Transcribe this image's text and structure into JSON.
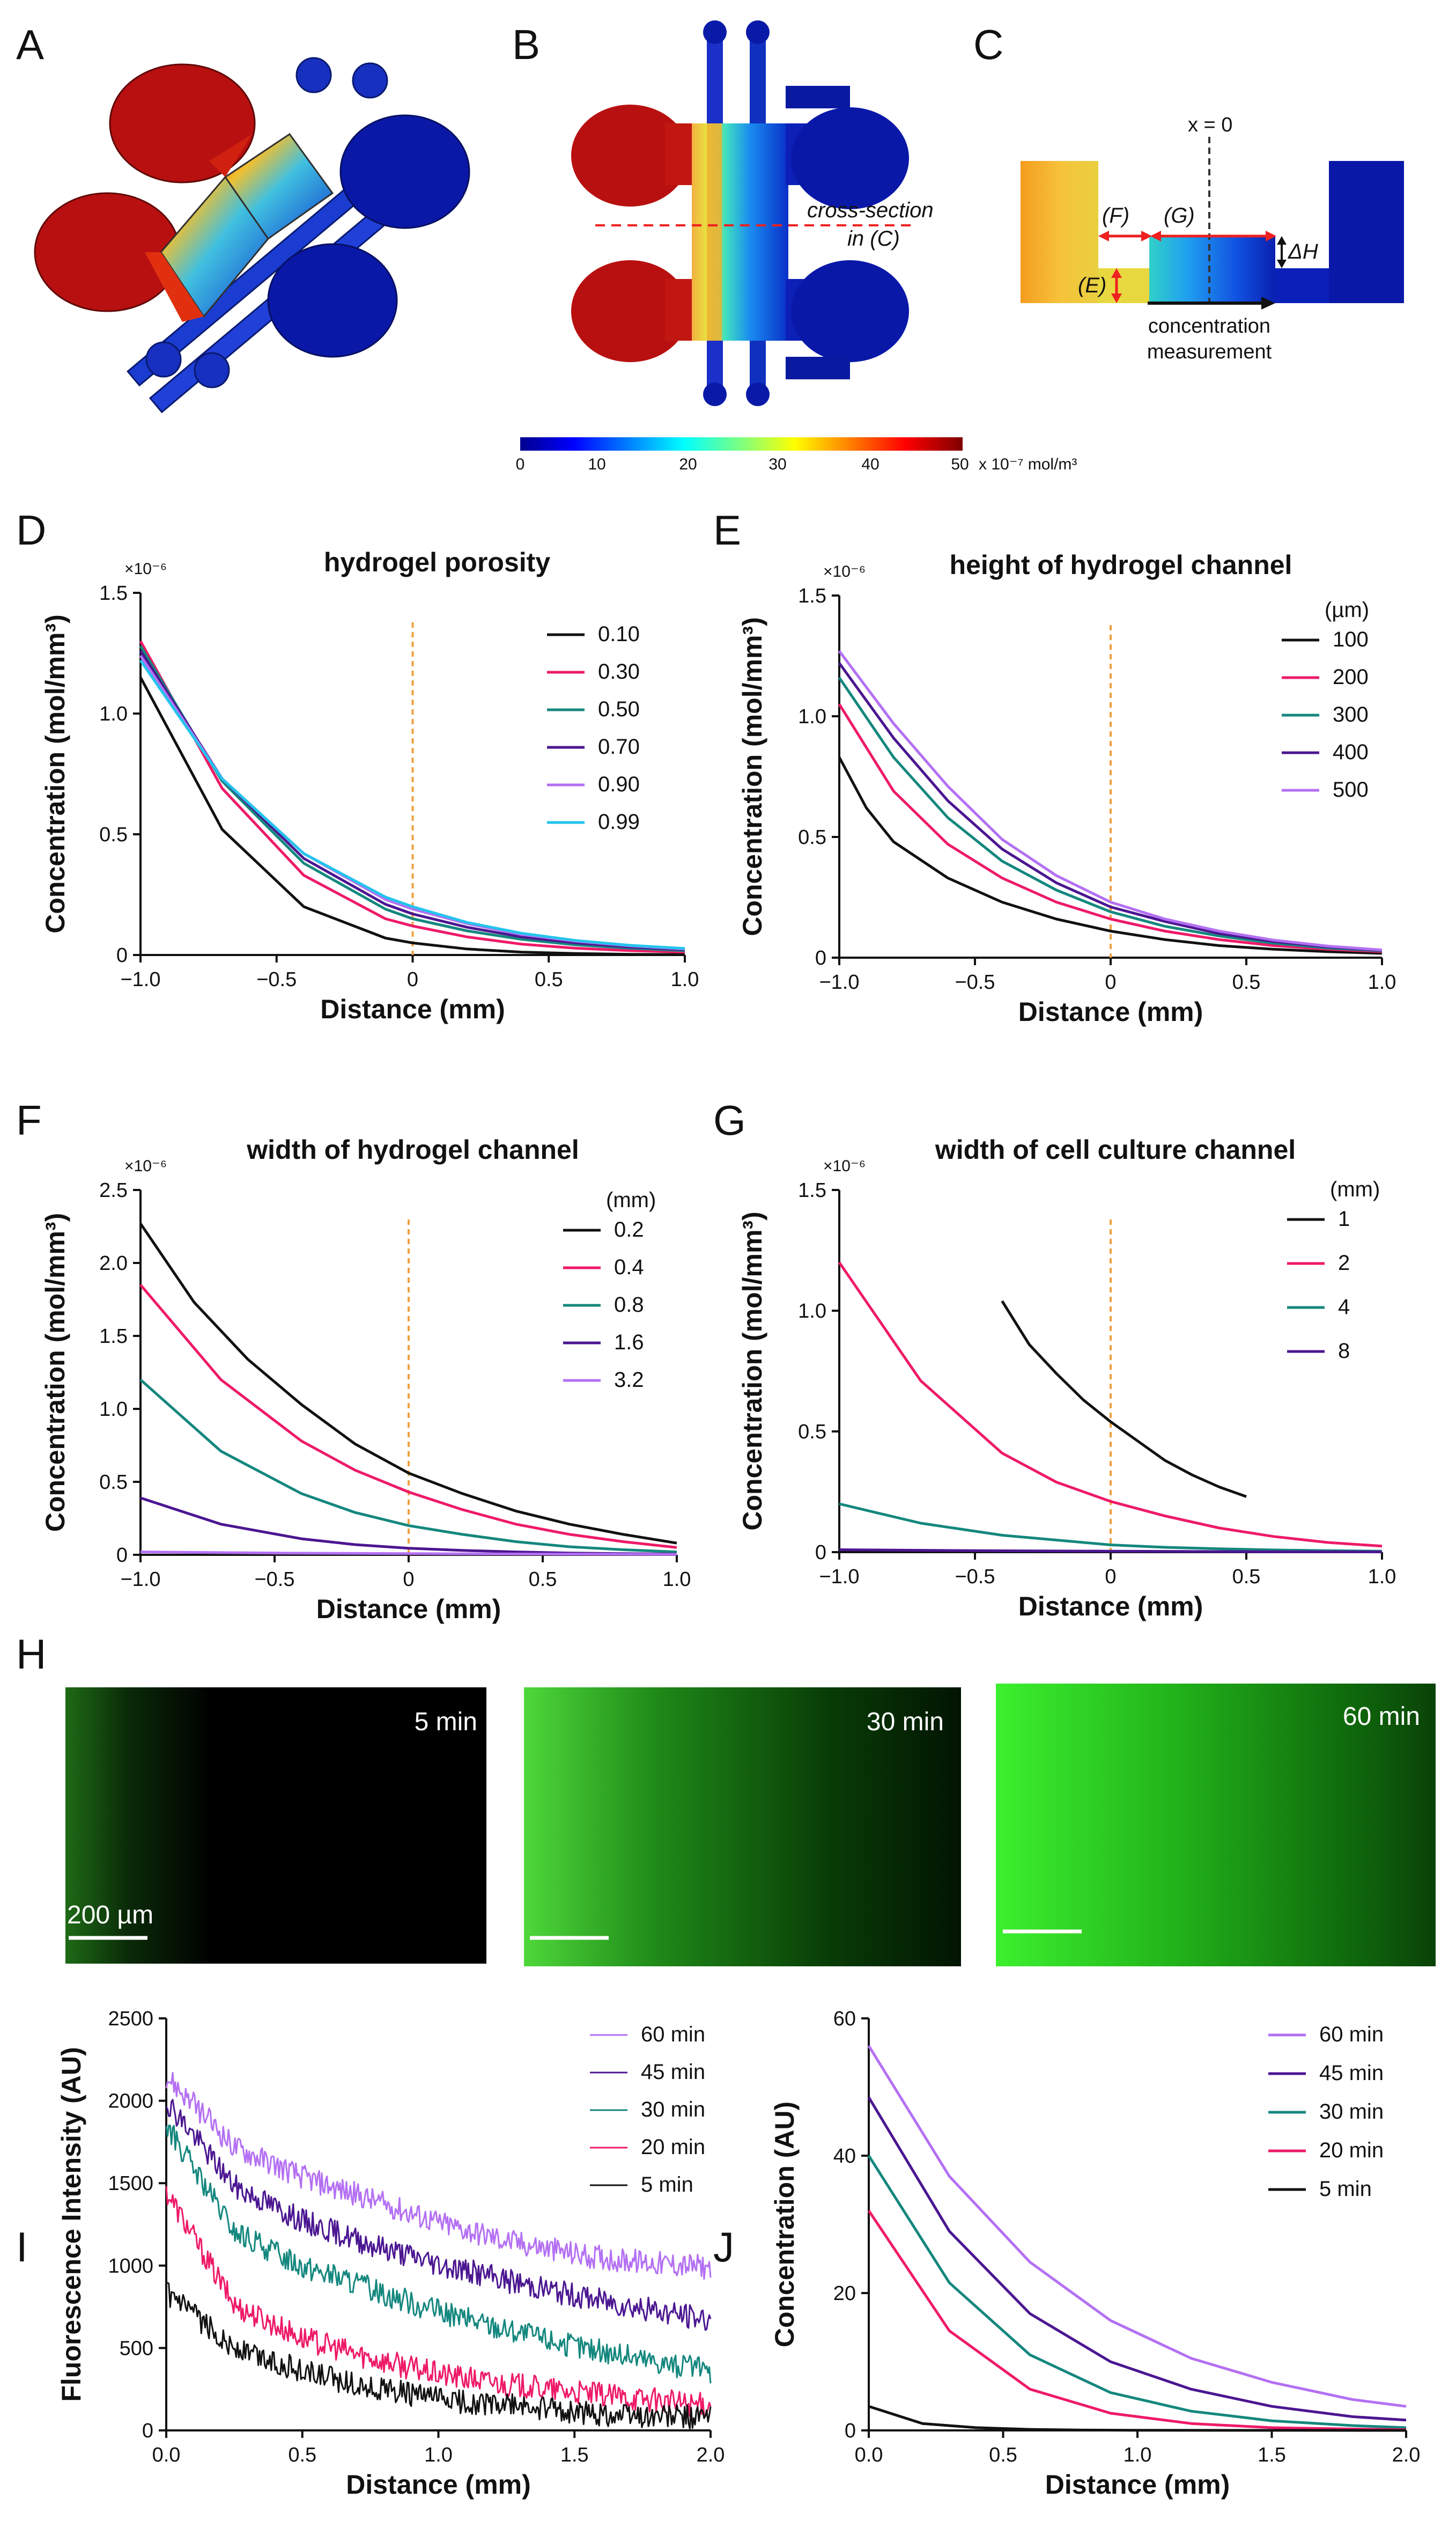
{
  "panel_labels": [
    "A",
    "B",
    "C",
    "D",
    "E",
    "F",
    "G",
    "H",
    "I",
    "J"
  ],
  "colors": {
    "black": "#111111",
    "pink": "#ee1a68",
    "teal": "#14877e",
    "purple": "#4b1691",
    "lavender": "#b470f3",
    "cyan": "#23c4ec",
    "orange_dash": "#f0a040"
  },
  "panelB": {
    "cross_section_label": [
      "cross-section",
      "in (C)"
    ],
    "colorbar_ticks": [
      "0",
      "10",
      "20",
      "30",
      "40",
      "50"
    ],
    "colorbar_unit": "x 10⁻⁷ mol/m³"
  },
  "panelC": {
    "x0_label": "x = 0",
    "F": "(F)",
    "G": "(G)",
    "E": "(E)",
    "dH": "ΔH",
    "measurement": [
      "concentration",
      "measurement"
    ]
  },
  "panelH": {
    "times": [
      "5 min",
      "30 min",
      "60 min"
    ],
    "scalebar": "200 µm"
  },
  "chart_data": [
    {
      "id": "D",
      "type": "line",
      "title": "hydrogel porosity",
      "xlabel": "Distance (mm)",
      "ylabel": "Concentration (mol/mm³)",
      "multiplier": "×10⁻⁶",
      "xlim": [
        -1,
        1
      ],
      "ylim": [
        0,
        1.5
      ],
      "xticks": [
        "−1.0",
        "−0.5",
        "0",
        "0.5",
        "1.0"
      ],
      "yticks": [
        "0",
        "0.5",
        "1.0",
        "1.5"
      ],
      "legend_title": "",
      "vline": 0,
      "series": [
        {
          "name": "0.10",
          "color": "#111111",
          "x": [
            -1,
            -0.7,
            -0.4,
            -0.1,
            0,
            0.2,
            0.4,
            0.6,
            0.8,
            1.0
          ],
          "y": [
            1.15,
            0.52,
            0.2,
            0.07,
            0.05,
            0.025,
            0.012,
            0.006,
            0.003,
            0.002
          ]
        },
        {
          "name": "0.30",
          "color": "#ee1a68",
          "x": [
            -1,
            -0.7,
            -0.4,
            -0.1,
            0,
            0.2,
            0.4,
            0.6,
            0.8,
            1.0
          ],
          "y": [
            1.3,
            0.69,
            0.33,
            0.15,
            0.12,
            0.075,
            0.045,
            0.028,
            0.018,
            0.012
          ]
        },
        {
          "name": "0.50",
          "color": "#14877e",
          "x": [
            -1,
            -0.7,
            -0.4,
            -0.1,
            0,
            0.2,
            0.4,
            0.6,
            0.8,
            1.0
          ],
          "y": [
            1.28,
            0.72,
            0.38,
            0.19,
            0.15,
            0.1,
            0.065,
            0.042,
            0.028,
            0.018
          ]
        },
        {
          "name": "0.70",
          "color": "#4b1691",
          "x": [
            -1,
            -0.7,
            -0.4,
            -0.1,
            0,
            0.2,
            0.4,
            0.6,
            0.8,
            1.0
          ],
          "y": [
            1.26,
            0.73,
            0.4,
            0.21,
            0.17,
            0.115,
            0.075,
            0.05,
            0.033,
            0.022
          ]
        },
        {
          "name": "0.90",
          "color": "#b470f3",
          "x": [
            -1,
            -0.7,
            -0.4,
            -0.1,
            0,
            0.2,
            0.4,
            0.6,
            0.8,
            1.0
          ],
          "y": [
            1.24,
            0.73,
            0.42,
            0.23,
            0.19,
            0.13,
            0.085,
            0.057,
            0.038,
            0.025
          ]
        },
        {
          "name": "0.99",
          "color": "#23c4ec",
          "x": [
            -1,
            -0.7,
            -0.4,
            -0.1,
            0,
            0.2,
            0.4,
            0.6,
            0.8,
            1.0
          ],
          "y": [
            1.22,
            0.73,
            0.42,
            0.24,
            0.2,
            0.135,
            0.09,
            0.06,
            0.04,
            0.027
          ]
        }
      ]
    },
    {
      "id": "E",
      "type": "line",
      "title": "height of hydrogel channel",
      "xlabel": "Distance (mm)",
      "ylabel": "Concentration (mol/mm³)",
      "multiplier": "×10⁻⁶",
      "xlim": [
        -1,
        1
      ],
      "ylim": [
        0,
        1.5
      ],
      "xticks": [
        "−1.0",
        "−0.5",
        "0",
        "0.5",
        "1.0"
      ],
      "yticks": [
        "0",
        "0.5",
        "1.0",
        "1.5"
      ],
      "legend_title": "(µm)",
      "vline": 0,
      "series": [
        {
          "name": "100",
          "color": "#111111",
          "x": [
            -1,
            -0.9,
            -0.8,
            -0.6,
            -0.4,
            -0.2,
            0,
            0.2,
            0.4,
            0.6,
            0.8,
            1.0
          ],
          "y": [
            0.83,
            0.62,
            0.48,
            0.33,
            0.23,
            0.16,
            0.11,
            0.075,
            0.05,
            0.035,
            0.025,
            0.018
          ]
        },
        {
          "name": "200",
          "color": "#ee1a68",
          "x": [
            -1,
            -0.8,
            -0.6,
            -0.4,
            -0.2,
            0,
            0.2,
            0.4,
            0.6,
            0.8,
            1.0
          ],
          "y": [
            1.05,
            0.69,
            0.47,
            0.33,
            0.23,
            0.16,
            0.11,
            0.075,
            0.05,
            0.035,
            0.025
          ]
        },
        {
          "name": "300",
          "color": "#14877e",
          "x": [
            -1,
            -0.8,
            -0.6,
            -0.4,
            -0.2,
            0,
            0.2,
            0.4,
            0.6,
            0.8,
            1.0
          ],
          "y": [
            1.16,
            0.83,
            0.58,
            0.4,
            0.28,
            0.19,
            0.13,
            0.09,
            0.06,
            0.04,
            0.028
          ]
        },
        {
          "name": "400",
          "color": "#4b1691",
          "x": [
            -1,
            -0.8,
            -0.6,
            -0.4,
            -0.2,
            0,
            0.2,
            0.4,
            0.6,
            0.8,
            1.0
          ],
          "y": [
            1.22,
            0.91,
            0.65,
            0.45,
            0.31,
            0.21,
            0.15,
            0.1,
            0.067,
            0.045,
            0.03
          ]
        },
        {
          "name": "500",
          "color": "#b470f3",
          "x": [
            -1,
            -0.8,
            -0.6,
            -0.4,
            -0.2,
            0,
            0.2,
            0.4,
            0.6,
            0.8,
            1.0
          ],
          "y": [
            1.27,
            0.97,
            0.71,
            0.49,
            0.34,
            0.23,
            0.16,
            0.11,
            0.073,
            0.048,
            0.032
          ]
        }
      ]
    },
    {
      "id": "F",
      "type": "line",
      "title": "width of hydrogel channel",
      "xlabel": "Distance (mm)",
      "ylabel": "Concentration (mol/mm³)",
      "multiplier": "×10⁻⁶",
      "xlim": [
        -1,
        1
      ],
      "ylim": [
        0,
        2.5
      ],
      "xticks": [
        "−1.0",
        "−0.5",
        "0",
        "0.5",
        "1.0"
      ],
      "yticks": [
        "0",
        "0.5",
        "1.0",
        "1.5",
        "2.0",
        "2.5"
      ],
      "legend_title": "(mm)",
      "vline": 0,
      "series": [
        {
          "name": "0.2",
          "color": "#111111",
          "x": [
            -1,
            -0.8,
            -0.6,
            -0.4,
            -0.2,
            0,
            0.2,
            0.4,
            0.6,
            0.8,
            1.0
          ],
          "y": [
            2.27,
            1.73,
            1.34,
            1.03,
            0.76,
            0.56,
            0.42,
            0.3,
            0.21,
            0.14,
            0.08
          ]
        },
        {
          "name": "0.4",
          "color": "#ee1a68",
          "x": [
            -1,
            -0.7,
            -0.4,
            -0.2,
            0,
            0.2,
            0.4,
            0.6,
            0.8,
            1.0
          ],
          "y": [
            1.85,
            1.2,
            0.78,
            0.58,
            0.43,
            0.31,
            0.21,
            0.14,
            0.09,
            0.05
          ]
        },
        {
          "name": "0.8",
          "color": "#14877e",
          "x": [
            -1,
            -0.7,
            -0.4,
            -0.2,
            0,
            0.2,
            0.4,
            0.6,
            0.8,
            1.0
          ],
          "y": [
            1.2,
            0.71,
            0.42,
            0.29,
            0.2,
            0.14,
            0.09,
            0.055,
            0.035,
            0.02
          ]
        },
        {
          "name": "1.6",
          "color": "#4b1691",
          "x": [
            -1,
            -0.7,
            -0.4,
            -0.2,
            0,
            0.2,
            0.4,
            0.6,
            0.8,
            1.0
          ],
          "y": [
            0.39,
            0.21,
            0.11,
            0.07,
            0.045,
            0.03,
            0.02,
            0.012,
            0.008,
            0.005
          ]
        },
        {
          "name": "3.2",
          "color": "#b470f3",
          "x": [
            -1,
            -0.5,
            0,
            0.5,
            1.0
          ],
          "y": [
            0.02,
            0.012,
            0.008,
            0.005,
            0.003
          ]
        }
      ]
    },
    {
      "id": "G",
      "type": "line",
      "title": "width of cell culture channel",
      "xlabel": "Distance (mm)",
      "ylabel": "Concentration (mol/mm³)",
      "multiplier": "×10⁻⁶",
      "xlim": [
        -1,
        1
      ],
      "ylim": [
        0,
        1.5
      ],
      "xticks": [
        "−1.0",
        "−0.5",
        "0",
        "0.5",
        "1.0"
      ],
      "yticks": [
        "0",
        "0.5",
        "1.0",
        "1.5"
      ],
      "legend_title": "(mm)",
      "vline": 0,
      "series": [
        {
          "name": "1",
          "color": "#111111",
          "x": [
            -0.4,
            -0.3,
            -0.2,
            -0.1,
            0,
            0.1,
            0.2,
            0.3,
            0.4,
            0.5
          ],
          "y": [
            1.04,
            0.86,
            0.74,
            0.63,
            0.54,
            0.46,
            0.38,
            0.32,
            0.27,
            0.23
          ]
        },
        {
          "name": "2",
          "color": "#ee1a68",
          "x": [
            -1,
            -0.7,
            -0.4,
            -0.2,
            0,
            0.2,
            0.4,
            0.6,
            0.8,
            1.0
          ],
          "y": [
            1.2,
            0.71,
            0.41,
            0.29,
            0.21,
            0.15,
            0.1,
            0.065,
            0.04,
            0.025
          ]
        },
        {
          "name": "4",
          "color": "#14877e",
          "x": [
            -1,
            -0.7,
            -0.4,
            -0.2,
            0,
            0.2,
            0.4,
            0.6,
            0.8,
            1.0
          ],
          "y": [
            0.2,
            0.12,
            0.07,
            0.05,
            0.03,
            0.02,
            0.014,
            0.009,
            0.006,
            0.004
          ]
        },
        {
          "name": "8",
          "color": "#4b1691",
          "x": [
            -1,
            -0.5,
            0,
            0.5,
            1.0
          ],
          "y": [
            0.01,
            0.006,
            0.004,
            0.002,
            0.001
          ]
        }
      ]
    },
    {
      "id": "I",
      "type": "line",
      "title": "",
      "xlabel": "Distance (mm)",
      "ylabel": "Fluorescence Intensity (AU)",
      "multiplier": "",
      "xlim": [
        0,
        2.0
      ],
      "ylim": [
        0,
        2500
      ],
      "xticks": [
        "0.0",
        "0.5",
        "1.0",
        "1.5",
        "2.0"
      ],
      "yticks": [
        "0",
        "500",
        "1000",
        "1500",
        "2000",
        "2500"
      ],
      "legend_title": "",
      "noisy": true,
      "series": [
        {
          "name": "60 min",
          "color": "#b470f3",
          "x": [
            0,
            0.25,
            0.5,
            0.75,
            1.0,
            1.25,
            1.5,
            1.75,
            2.0
          ],
          "y": [
            2150,
            1720,
            1540,
            1400,
            1260,
            1150,
            1070,
            1020,
            990
          ]
        },
        {
          "name": "45 min",
          "color": "#4b1691",
          "x": [
            0,
            0.25,
            0.5,
            0.75,
            1.0,
            1.25,
            1.5,
            1.75,
            2.0
          ],
          "y": [
            2000,
            1480,
            1270,
            1130,
            1010,
            910,
            820,
            740,
            670
          ]
        },
        {
          "name": "30 min",
          "color": "#14877e",
          "x": [
            0,
            0.25,
            0.5,
            0.75,
            1.0,
            1.25,
            1.5,
            1.75,
            2.0
          ],
          "y": [
            1850,
            1200,
            1000,
            860,
            720,
            610,
            510,
            430,
            360
          ]
        },
        {
          "name": "20 min",
          "color": "#ee1a68",
          "x": [
            0,
            0.25,
            0.5,
            0.75,
            1.0,
            1.25,
            1.5,
            1.75,
            2.0
          ],
          "y": [
            1450,
            760,
            560,
            440,
            340,
            280,
            230,
            190,
            150
          ]
        },
        {
          "name": "5 min",
          "color": "#111111",
          "x": [
            0,
            0.25,
            0.5,
            0.75,
            1.0,
            1.25,
            1.5,
            1.75,
            2.0
          ],
          "y": [
            830,
            500,
            360,
            260,
            190,
            150,
            110,
            90,
            80
          ]
        }
      ]
    },
    {
      "id": "J",
      "type": "line",
      "title": "",
      "xlabel": "Distance (mm)",
      "ylabel": "Concentration (AU)",
      "multiplier": "",
      "xlim": [
        0,
        2.0
      ],
      "ylim": [
        0,
        60
      ],
      "xticks": [
        "0.0",
        "0.5",
        "1.0",
        "1.5",
        "2.0"
      ],
      "yticks": [
        "0",
        "20",
        "40",
        "60"
      ],
      "legend_title": "",
      "series": [
        {
          "name": "60 min",
          "color": "#b470f3",
          "x": [
            0,
            0.3,
            0.6,
            0.9,
            1.2,
            1.5,
            1.8,
            2.0
          ],
          "y": [
            56,
            37,
            24.5,
            16,
            10.5,
            7,
            4.5,
            3.5
          ]
        },
        {
          "name": "45 min",
          "color": "#4b1691",
          "x": [
            0,
            0.3,
            0.6,
            0.9,
            1.2,
            1.5,
            1.8,
            2.0
          ],
          "y": [
            48.5,
            29,
            17,
            10,
            6,
            3.5,
            2,
            1.5
          ]
        },
        {
          "name": "30 min",
          "color": "#14877e",
          "x": [
            0,
            0.3,
            0.6,
            0.9,
            1.2,
            1.5,
            1.8,
            2.0
          ],
          "y": [
            40,
            21.5,
            11,
            5.5,
            2.8,
            1.4,
            0.7,
            0.4
          ]
        },
        {
          "name": "20 min",
          "color": "#ee1a68",
          "x": [
            0,
            0.3,
            0.6,
            0.9,
            1.2,
            1.5,
            1.8,
            2.0
          ],
          "y": [
            32,
            14.5,
            6,
            2.5,
            1,
            0.4,
            0.2,
            0.1
          ]
        },
        {
          "name": "5 min",
          "color": "#111111",
          "x": [
            0,
            0.2,
            0.4,
            0.6,
            0.8,
            1.0,
            1.5,
            2.0
          ],
          "y": [
            3.5,
            1,
            0.4,
            0.15,
            0.05,
            0.02,
            0.01,
            0
          ]
        }
      ]
    }
  ]
}
